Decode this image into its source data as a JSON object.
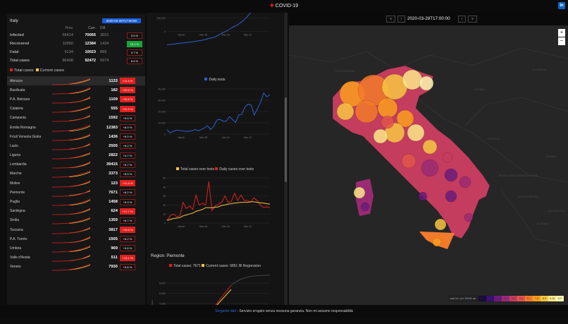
{
  "header": {
    "title": "COVID-19",
    "linkedin": "in"
  },
  "summary": {
    "country": "Italy",
    "date": "2020-03-28T17:00:00",
    "cols": [
      "Prev.",
      "Curr.",
      "Diff."
    ],
    "rows": [
      {
        "label": "Infected",
        "prev": "66414",
        "curr": "70065",
        "diff": "3651",
        "pct": "5.5 %",
        "style": "normal"
      },
      {
        "label": "Recovered",
        "prev": "10950",
        "curr": "12384",
        "diff": "1434",
        "pct": "13.1 %",
        "style": "green"
      },
      {
        "label": "Fatal",
        "prev": "9134",
        "curr": "10023",
        "diff": "889",
        "pct": "9.7 %",
        "style": "normal"
      },
      {
        "label": "Total cases",
        "prev": "86498",
        "curr": "92472",
        "diff": "5974",
        "pct": "6.9 %",
        "style": "normal"
      }
    ],
    "legend": {
      "total": "Total cases",
      "current": "Current cases"
    }
  },
  "colors": {
    "red": "#e0201f",
    "yellow": "#f5c542",
    "blue": "#2f5fd0",
    "green": "#19a33a"
  },
  "regions": [
    {
      "name": "Abruzzo",
      "value": "1133",
      "pct": "+11.4 %",
      "high": true
    },
    {
      "name": "Basilicata",
      "value": "182",
      "pct": "+20.5 %",
      "high": true
    },
    {
      "name": "P.A. Bolzano",
      "value": "1109",
      "pct": "+10.8 %",
      "high": true
    },
    {
      "name": "Calabria",
      "value": "555",
      "pct": "+12.3 %",
      "high": true
    },
    {
      "name": "Campania",
      "value": "1592",
      "pct": "+9.5 %",
      "high": false
    },
    {
      "name": "Emilia Romagna",
      "value": "12383",
      "pct": "+6.9 %",
      "high": false
    },
    {
      "name": "Friuli Venezia Giulia",
      "value": "1436",
      "pct": "+9.0 %",
      "high": false
    },
    {
      "name": "Lazio",
      "value": "2505",
      "pct": "+9.2 %",
      "high": false
    },
    {
      "name": "Liguria",
      "value": "2822",
      "pct": "+4.7 %",
      "high": false
    },
    {
      "name": "Lombardia",
      "value": "39415",
      "pct": "+5.7 %",
      "high": false
    },
    {
      "name": "Marche",
      "value": "3373",
      "pct": "+5.5 %",
      "high": false
    },
    {
      "name": "Molise",
      "value": "123",
      "pct": "+12.8 %",
      "high": true
    },
    {
      "name": "Piemonte",
      "value": "7671",
      "pct": "+8.2 %",
      "high": false
    },
    {
      "name": "Puglia",
      "value": "1458",
      "pct": "+9.3 %",
      "high": false
    },
    {
      "name": "Sardegna",
      "value": "624",
      "pct": "+17.7 %",
      "high": true
    },
    {
      "name": "Sicilia",
      "value": "1359",
      "pct": "+8.7 %",
      "high": false
    },
    {
      "name": "Toscana",
      "value": "3817",
      "pct": "+10.6 %",
      "high": true
    },
    {
      "name": "P.A. Trento",
      "value": "1505",
      "pct": "+8.2 %",
      "high": false
    },
    {
      "name": "Umbria",
      "value": "969",
      "pct": "+9.6 %",
      "high": false
    },
    {
      "name": "Valle d'Aosta",
      "value": "511",
      "pct": "+13.1 %",
      "high": true
    },
    {
      "name": "Veneto",
      "value": "7930",
      "pct": "+5.8 %",
      "high": false
    }
  ],
  "chart_data": [
    {
      "type": "line",
      "title": "",
      "series": [
        {
          "name": "",
          "values": "cumulative of daily tests"
        }
      ],
      "yticks": [
        "0",
        "100,000",
        "200,000"
      ],
      "xticks": [
        "March",
        "Mar 08",
        "Mar 15",
        "Mar 22"
      ]
    },
    {
      "type": "line",
      "series": [
        {
          "name": "Daily tests",
          "values": [
            4000,
            1000,
            2500,
            3500,
            3200,
            2800,
            2500,
            2500,
            3000,
            4000,
            3000,
            4000,
            5500,
            7500,
            4000,
            7000,
            12500,
            13000,
            11500,
            11500,
            15500,
            13000,
            10500,
            17000,
            17500,
            24000,
            26500,
            25500,
            17000,
            22500,
            28000,
            36500,
            33000,
            35000
          ]
        }
      ],
      "yticks": [
        "0",
        "10,000",
        "20,000",
        "30,000",
        "40,000"
      ],
      "ylim": [
        0,
        40000
      ],
      "xticks": [
        "March",
        "Mar 08",
        "Mar 15",
        "Mar 22"
      ]
    },
    {
      "type": "line",
      "series": [
        {
          "name": "Total cases over tests",
          "values": [
            3,
            4,
            5,
            5.5,
            6,
            8,
            9,
            10,
            11,
            13,
            14,
            15,
            17,
            17,
            17,
            17.5,
            18,
            19.5,
            20,
            21,
            21.5,
            22,
            22.5,
            23,
            23,
            23,
            23.5,
            23.5,
            23,
            22.5,
            22,
            21.5,
            21
          ]
        },
        {
          "name": "Daily cases over tests",
          "values": [
            3,
            8,
            10,
            7,
            8,
            23,
            16,
            19,
            15,
            31,
            20,
            22,
            20,
            46,
            14,
            19,
            21,
            23,
            30,
            23,
            24,
            33,
            25,
            31,
            25,
            25,
            23,
            28,
            25,
            20,
            17,
            18,
            17
          ]
        }
      ],
      "yticks": [
        "0",
        "10",
        "20",
        "30",
        "40",
        "50"
      ],
      "ylim": [
        0,
        50
      ],
      "xticks": [
        "March",
        "Mar 08",
        "Mar 15",
        "Mar 22"
      ]
    },
    {
      "type": "line",
      "title": "Region: Piemonte",
      "legend": [
        "Total cases: 7671",
        "Current cases: 6851",
        "Regression"
      ],
      "yticks": [
        "4,000",
        "6,000",
        "8,000"
      ],
      "ylabel": "Numero"
    }
  ],
  "map": {
    "date": "2020-03-28T17:00:00",
    "buttons": [
      "«",
      "‹",
      "›",
      "»"
    ],
    "zoom_in": "+",
    "zoom_out": "−",
    "labels": [
      "SLOVAKIA",
      "VIENNA",
      "SWITZERLAND",
      "CROATIA",
      "BOSNIA AND HERZEGOVINA",
      "SERBIA",
      "MONTENEGRO",
      "ALBANIA",
      "MACEDONIA"
    ],
    "scale_title": "casi tot. per 10000 ab.",
    "scale": [
      "0-1",
      "1-2",
      "2-3",
      "3-4",
      "4-5",
      "5-6",
      "6-7",
      "7-8",
      "8-9",
      "9-10",
      "10+"
    ],
    "scale_colors": [
      "#1a0a3a",
      "#3b0f70",
      "#6a1b7a",
      "#9a2a73",
      "#c43c5e",
      "#e0554a",
      "#f27a2c",
      "#fb9e1e",
      "#f8c543",
      "#fbe88a",
      "#fdf7b0"
    ]
  },
  "footer": {
    "link": "Sorgente dati",
    "text": " - Servizio erogato senza nessuna garanzia. Non mi assumo responsabilità"
  }
}
